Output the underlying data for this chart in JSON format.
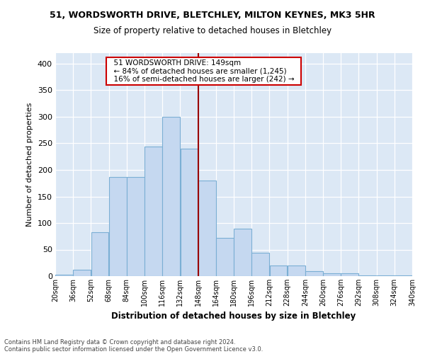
{
  "title_line1": "51, WORDSWORTH DRIVE, BLETCHLEY, MILTON KEYNES, MK3 5HR",
  "title_line2": "Size of property relative to detached houses in Bletchley",
  "xlabel": "Distribution of detached houses by size in Bletchley",
  "ylabel": "Number of detached properties",
  "footer1": "Contains HM Land Registry data © Crown copyright and database right 2024.",
  "footer2": "Contains public sector information licensed under the Open Government Licence v3.0.",
  "annotation_line1": "51 WORDSWORTH DRIVE: 149sqm",
  "annotation_line2": "← 84% of detached houses are smaller (1,245)",
  "annotation_line3": "16% of semi-detached houses are larger (242) →",
  "bin_edges": [
    20,
    36,
    52,
    68,
    84,
    100,
    116,
    132,
    148,
    164,
    180,
    196,
    212,
    228,
    244,
    260,
    276,
    292,
    308,
    324,
    340
  ],
  "bin_labels": [
    "20sqm",
    "36sqm",
    "52sqm",
    "68sqm",
    "84sqm",
    "100sqm",
    "116sqm",
    "132sqm",
    "148sqm",
    "164sqm",
    "180sqm",
    "196sqm",
    "212sqm",
    "228sqm",
    "244sqm",
    "260sqm",
    "276sqm",
    "292sqm",
    "308sqm",
    "324sqm",
    "340sqm"
  ],
  "counts": [
    3,
    12,
    83,
    186,
    186,
    244,
    300,
    240,
    180,
    72,
    90,
    44,
    20,
    20,
    10,
    5,
    5,
    2,
    1,
    1
  ],
  "bar_color": "#c5d8f0",
  "bar_edge_color": "#7bafd4",
  "vline_color": "#990000",
  "vline_x": 148,
  "bg_color": "#dce8f5",
  "annotation_box_color": "#cc0000",
  "ylim": [
    0,
    420
  ],
  "yticks": [
    0,
    50,
    100,
    150,
    200,
    250,
    300,
    350,
    400
  ]
}
